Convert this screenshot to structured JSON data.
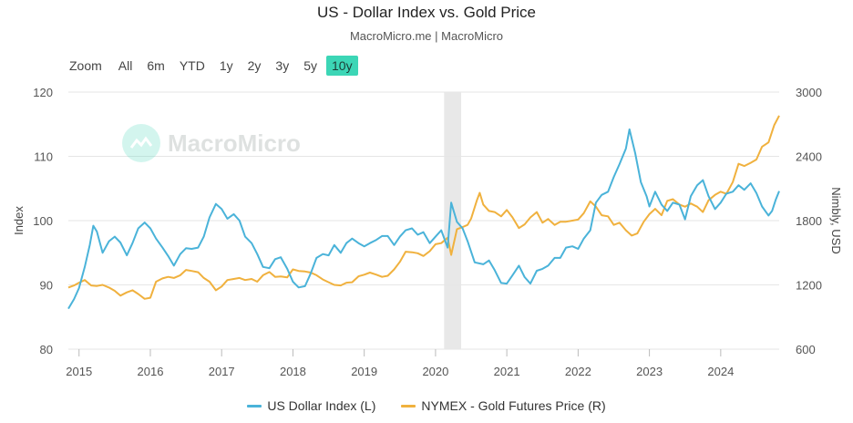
{
  "header": {
    "title": "US - Dollar Index vs. Gold Price",
    "subtitle": "MacroMicro.me | MacroMicro"
  },
  "range_selector": {
    "zoom_label": "Zoom",
    "buttons": [
      "All",
      "6m",
      "YTD",
      "1y",
      "2y",
      "3y",
      "5y",
      "10y"
    ],
    "active": "10y"
  },
  "watermark": {
    "text": "MacroMicro"
  },
  "colors": {
    "dollar": "#4ab3d9",
    "gold": "#f0b13e",
    "shade": "#e8e8e8",
    "grid": "#e6e6e6"
  },
  "chart_data": {
    "type": "line",
    "x_range": [
      2014.85,
      2024.82
    ],
    "x_ticks": [
      "2015",
      "2016",
      "2017",
      "2018",
      "2019",
      "2020",
      "2021",
      "2022",
      "2023",
      "2024"
    ],
    "y_left": {
      "label": "Index",
      "range": [
        80,
        120
      ],
      "ticks": [
        "80",
        "90",
        "100",
        "110",
        "120"
      ]
    },
    "y_right": {
      "label": "Nimbly, USD",
      "range": [
        600,
        3000
      ],
      "ticks": [
        "600",
        "1200",
        "1800",
        "2400",
        "3000"
      ]
    },
    "shaded_region": [
      2020.12,
      2020.36
    ],
    "series": [
      {
        "name": "US Dollar Index (L)",
        "axis": "left",
        "points": [
          [
            2014.85,
            86.3
          ],
          [
            2014.93,
            87.8
          ],
          [
            2015.0,
            89.5
          ],
          [
            2015.08,
            92.8
          ],
          [
            2015.15,
            96.2
          ],
          [
            2015.2,
            99.2
          ],
          [
            2015.25,
            98.3
          ],
          [
            2015.33,
            95.0
          ],
          [
            2015.42,
            96.8
          ],
          [
            2015.5,
            97.5
          ],
          [
            2015.58,
            96.6
          ],
          [
            2015.67,
            94.6
          ],
          [
            2015.75,
            96.5
          ],
          [
            2015.83,
            98.8
          ],
          [
            2015.92,
            99.7
          ],
          [
            2016.0,
            98.8
          ],
          [
            2016.08,
            97.2
          ],
          [
            2016.17,
            95.8
          ],
          [
            2016.25,
            94.5
          ],
          [
            2016.33,
            93.0
          ],
          [
            2016.42,
            94.8
          ],
          [
            2016.5,
            95.7
          ],
          [
            2016.58,
            95.6
          ],
          [
            2016.67,
            95.8
          ],
          [
            2016.75,
            97.5
          ],
          [
            2016.83,
            100.5
          ],
          [
            2016.92,
            102.6
          ],
          [
            2017.0,
            101.8
          ],
          [
            2017.08,
            100.3
          ],
          [
            2017.17,
            101.0
          ],
          [
            2017.25,
            100.0
          ],
          [
            2017.33,
            97.5
          ],
          [
            2017.42,
            96.5
          ],
          [
            2017.5,
            94.8
          ],
          [
            2017.58,
            92.8
          ],
          [
            2017.67,
            92.6
          ],
          [
            2017.75,
            94.0
          ],
          [
            2017.83,
            94.3
          ],
          [
            2017.92,
            92.5
          ],
          [
            2018.0,
            90.5
          ],
          [
            2018.08,
            89.6
          ],
          [
            2018.17,
            89.8
          ],
          [
            2018.25,
            91.8
          ],
          [
            2018.33,
            94.2
          ],
          [
            2018.42,
            94.8
          ],
          [
            2018.5,
            94.6
          ],
          [
            2018.58,
            96.2
          ],
          [
            2018.67,
            95.0
          ],
          [
            2018.75,
            96.5
          ],
          [
            2018.83,
            97.2
          ],
          [
            2018.92,
            96.5
          ],
          [
            2019.0,
            96.0
          ],
          [
            2019.08,
            96.5
          ],
          [
            2019.17,
            97.0
          ],
          [
            2019.25,
            97.6
          ],
          [
            2019.33,
            97.6
          ],
          [
            2019.42,
            96.2
          ],
          [
            2019.5,
            97.5
          ],
          [
            2019.58,
            98.5
          ],
          [
            2019.67,
            98.8
          ],
          [
            2019.75,
            97.8
          ],
          [
            2019.83,
            98.2
          ],
          [
            2019.92,
            96.5
          ],
          [
            2020.0,
            97.5
          ],
          [
            2020.08,
            98.5
          ],
          [
            2020.17,
            95.8
          ],
          [
            2020.22,
            102.8
          ],
          [
            2020.3,
            99.8
          ],
          [
            2020.38,
            98.8
          ],
          [
            2020.45,
            96.8
          ],
          [
            2020.55,
            93.5
          ],
          [
            2020.67,
            93.2
          ],
          [
            2020.75,
            93.8
          ],
          [
            2020.83,
            92.3
          ],
          [
            2020.92,
            90.3
          ],
          [
            2021.0,
            90.2
          ],
          [
            2021.08,
            91.5
          ],
          [
            2021.17,
            93.0
          ],
          [
            2021.25,
            91.2
          ],
          [
            2021.33,
            90.2
          ],
          [
            2021.42,
            92.2
          ],
          [
            2021.5,
            92.5
          ],
          [
            2021.58,
            93.0
          ],
          [
            2021.67,
            94.2
          ],
          [
            2021.75,
            94.2
          ],
          [
            2021.83,
            95.8
          ],
          [
            2021.92,
            96.0
          ],
          [
            2022.0,
            95.6
          ],
          [
            2022.08,
            97.2
          ],
          [
            2022.17,
            98.5
          ],
          [
            2022.25,
            102.8
          ],
          [
            2022.33,
            104.0
          ],
          [
            2022.42,
            104.5
          ],
          [
            2022.5,
            106.8
          ],
          [
            2022.58,
            108.8
          ],
          [
            2022.67,
            111.2
          ],
          [
            2022.72,
            114.2
          ],
          [
            2022.8,
            110.5
          ],
          [
            2022.88,
            106.0
          ],
          [
            2022.96,
            103.8
          ],
          [
            2023.0,
            102.2
          ],
          [
            2023.08,
            104.5
          ],
          [
            2023.17,
            102.5
          ],
          [
            2023.25,
            101.5
          ],
          [
            2023.33,
            102.8
          ],
          [
            2023.42,
            102.5
          ],
          [
            2023.5,
            100.2
          ],
          [
            2023.58,
            103.8
          ],
          [
            2023.67,
            105.5
          ],
          [
            2023.75,
            106.3
          ],
          [
            2023.83,
            103.8
          ],
          [
            2023.92,
            101.8
          ],
          [
            2024.0,
            102.8
          ],
          [
            2024.08,
            104.2
          ],
          [
            2024.17,
            104.5
          ],
          [
            2024.25,
            105.5
          ],
          [
            2024.33,
            104.8
          ],
          [
            2024.42,
            105.8
          ],
          [
            2024.5,
            104.3
          ],
          [
            2024.58,
            102.2
          ],
          [
            2024.67,
            100.8
          ],
          [
            2024.72,
            101.5
          ],
          [
            2024.77,
            103.2
          ],
          [
            2024.82,
            104.6
          ]
        ]
      },
      {
        "name": "NYMEX - Gold Futures Price (R)",
        "axis": "right",
        "points": [
          [
            2014.85,
            1175
          ],
          [
            2014.93,
            1195
          ],
          [
            2015.0,
            1220
          ],
          [
            2015.08,
            1245
          ],
          [
            2015.17,
            1195
          ],
          [
            2015.25,
            1190
          ],
          [
            2015.33,
            1200
          ],
          [
            2015.42,
            1175
          ],
          [
            2015.5,
            1145
          ],
          [
            2015.58,
            1100
          ],
          [
            2015.67,
            1130
          ],
          [
            2015.75,
            1150
          ],
          [
            2015.83,
            1115
          ],
          [
            2015.92,
            1070
          ],
          [
            2016.0,
            1080
          ],
          [
            2016.08,
            1230
          ],
          [
            2016.17,
            1260
          ],
          [
            2016.25,
            1275
          ],
          [
            2016.33,
            1265
          ],
          [
            2016.42,
            1290
          ],
          [
            2016.5,
            1340
          ],
          [
            2016.58,
            1330
          ],
          [
            2016.67,
            1318
          ],
          [
            2016.75,
            1265
          ],
          [
            2016.83,
            1230
          ],
          [
            2016.92,
            1150
          ],
          [
            2017.0,
            1185
          ],
          [
            2017.08,
            1245
          ],
          [
            2017.17,
            1255
          ],
          [
            2017.25,
            1265
          ],
          [
            2017.33,
            1245
          ],
          [
            2017.42,
            1255
          ],
          [
            2017.5,
            1230
          ],
          [
            2017.58,
            1290
          ],
          [
            2017.67,
            1320
          ],
          [
            2017.75,
            1275
          ],
          [
            2017.83,
            1278
          ],
          [
            2017.92,
            1270
          ],
          [
            2018.0,
            1345
          ],
          [
            2018.08,
            1330
          ],
          [
            2018.17,
            1325
          ],
          [
            2018.25,
            1315
          ],
          [
            2018.33,
            1290
          ],
          [
            2018.42,
            1250
          ],
          [
            2018.5,
            1225
          ],
          [
            2018.58,
            1200
          ],
          [
            2018.67,
            1195
          ],
          [
            2018.75,
            1220
          ],
          [
            2018.83,
            1225
          ],
          [
            2018.92,
            1280
          ],
          [
            2019.0,
            1295
          ],
          [
            2019.08,
            1315
          ],
          [
            2019.17,
            1295
          ],
          [
            2019.25,
            1275
          ],
          [
            2019.33,
            1285
          ],
          [
            2019.42,
            1345
          ],
          [
            2019.5,
            1415
          ],
          [
            2019.58,
            1510
          ],
          [
            2019.67,
            1505
          ],
          [
            2019.75,
            1495
          ],
          [
            2019.83,
            1470
          ],
          [
            2019.92,
            1515
          ],
          [
            2020.0,
            1580
          ],
          [
            2020.08,
            1590
          ],
          [
            2020.17,
            1640
          ],
          [
            2020.22,
            1480
          ],
          [
            2020.3,
            1720
          ],
          [
            2020.38,
            1740
          ],
          [
            2020.45,
            1760
          ],
          [
            2020.5,
            1820
          ],
          [
            2020.58,
            1990
          ],
          [
            2020.62,
            2060
          ],
          [
            2020.67,
            1950
          ],
          [
            2020.75,
            1890
          ],
          [
            2020.83,
            1880
          ],
          [
            2020.92,
            1840
          ],
          [
            2021.0,
            1900
          ],
          [
            2021.08,
            1830
          ],
          [
            2021.17,
            1730
          ],
          [
            2021.25,
            1765
          ],
          [
            2021.33,
            1830
          ],
          [
            2021.42,
            1880
          ],
          [
            2021.5,
            1780
          ],
          [
            2021.58,
            1815
          ],
          [
            2021.67,
            1760
          ],
          [
            2021.75,
            1790
          ],
          [
            2021.83,
            1790
          ],
          [
            2021.92,
            1800
          ],
          [
            2022.0,
            1810
          ],
          [
            2022.08,
            1870
          ],
          [
            2022.17,
            1980
          ],
          [
            2022.25,
            1930
          ],
          [
            2022.33,
            1850
          ],
          [
            2022.42,
            1840
          ],
          [
            2022.5,
            1760
          ],
          [
            2022.58,
            1780
          ],
          [
            2022.67,
            1710
          ],
          [
            2022.75,
            1660
          ],
          [
            2022.83,
            1680
          ],
          [
            2022.92,
            1790
          ],
          [
            2023.0,
            1860
          ],
          [
            2023.08,
            1910
          ],
          [
            2023.17,
            1850
          ],
          [
            2023.25,
            1985
          ],
          [
            2023.33,
            2000
          ],
          [
            2023.42,
            1950
          ],
          [
            2023.5,
            1930
          ],
          [
            2023.58,
            1960
          ],
          [
            2023.67,
            1930
          ],
          [
            2023.75,
            1880
          ],
          [
            2023.83,
            1990
          ],
          [
            2023.92,
            2040
          ],
          [
            2024.0,
            2070
          ],
          [
            2024.08,
            2050
          ],
          [
            2024.17,
            2160
          ],
          [
            2024.25,
            2330
          ],
          [
            2024.33,
            2310
          ],
          [
            2024.42,
            2340
          ],
          [
            2024.5,
            2370
          ],
          [
            2024.58,
            2490
          ],
          [
            2024.67,
            2530
          ],
          [
            2024.75,
            2690
          ],
          [
            2024.82,
            2780
          ]
        ]
      }
    ],
    "legend_position": "bottom"
  }
}
